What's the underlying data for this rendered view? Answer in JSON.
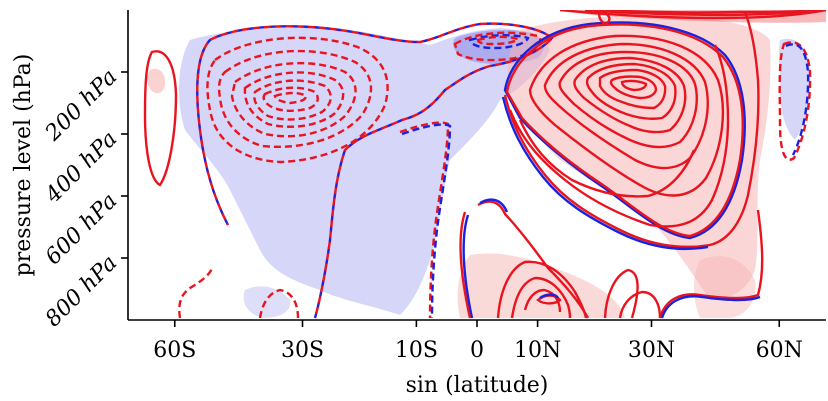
{
  "chart_data": {
    "type": "contour",
    "title": "",
    "xlabel": "sin (latitude)",
    "ylabel": "pressure level (hPa)",
    "x_ticks": [
      "60S",
      "30S",
      "10S",
      "0",
      "10N",
      "30N",
      "60N"
    ],
    "x_tick_values_lat": [
      -60,
      -30,
      -10,
      0,
      10,
      30,
      60
    ],
    "y_ticks": [
      "200 hPa",
      "400 hPa",
      "600 hPa",
      "800 hPa"
    ],
    "y_tick_values": [
      200,
      400,
      600,
      800
    ],
    "ylim": [
      1000,
      0
    ],
    "xlim_sin_lat": [
      -1,
      1
    ],
    "series": [
      {
        "style": "solid contours",
        "color": "#e8141f",
        "meaning": "positive values"
      },
      {
        "style": "dashed contours",
        "color": "#e8141f",
        "meaning": "negative values"
      },
      {
        "style": "overlay contours",
        "color": "#1a22e0"
      }
    ],
    "shading": {
      "positive": "#f7a8a8",
      "negative": "#a8a8f0"
    },
    "features": [
      {
        "kind": "negative cell",
        "lat": -40,
        "p": 240
      },
      {
        "kind": "positive cell",
        "lat": 28,
        "p": 220
      },
      {
        "kind": "positive cell",
        "lat": 12,
        "p": 880
      },
      {
        "kind": "positive cell",
        "lat": -60,
        "p": 240
      }
    ]
  },
  "colors": {
    "red_line": "#e8141f",
    "blue_line": "#1a22e0",
    "red_fill": "#f6b4b4",
    "blue_fill": "#b5b5f2"
  }
}
